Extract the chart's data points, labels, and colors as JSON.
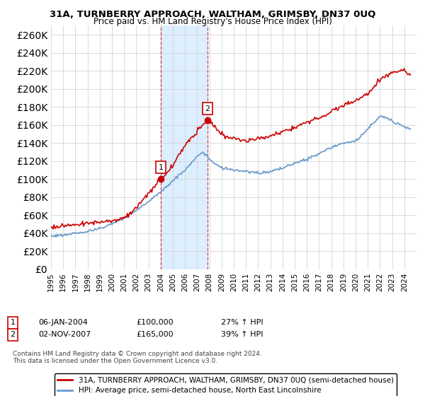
{
  "title": "31A, TURNBERRY APPROACH, WALTHAM, GRIMSBY, DN37 0UQ",
  "subtitle": "Price paid vs. HM Land Registry's House Price Index (HPI)",
  "legend_line1": "31A, TURNBERRY APPROACH, WALTHAM, GRIMSBY, DN37 0UQ (semi-detached house)",
  "legend_line2": "HPI: Average price, semi-detached house, North East Lincolnshire",
  "footnote": "Contains HM Land Registry data © Crown copyright and database right 2024.\nThis data is licensed under the Open Government Licence v3.0.",
  "sale1_date": "06-JAN-2004",
  "sale1_price": "£100,000",
  "sale1_hpi": "27% ↑ HPI",
  "sale2_date": "02-NOV-2007",
  "sale2_price": "£165,000",
  "sale2_hpi": "39% ↑ HPI",
  "sale1_x": 2004.03,
  "sale1_y": 100000,
  "sale2_x": 2007.84,
  "sale2_y": 165000,
  "shaded_x1": 2004.03,
  "shaded_x2": 2007.84,
  "ylim": [
    0,
    270000
  ],
  "xlim_start": 1995.0,
  "xlim_end": 2025.0,
  "price_color": "#cc0000",
  "hpi_color": "#6699cc",
  "shade_color": "#ddeeff",
  "yticks": [
    0,
    20000,
    40000,
    60000,
    80000,
    100000,
    120000,
    140000,
    160000,
    180000,
    200000,
    220000,
    240000,
    260000
  ],
  "xticks": [
    1995,
    1996,
    1997,
    1998,
    1999,
    2000,
    2001,
    2002,
    2003,
    2004,
    2005,
    2006,
    2007,
    2008,
    2009,
    2010,
    2011,
    2012,
    2013,
    2014,
    2015,
    2016,
    2017,
    2018,
    2019,
    2020,
    2021,
    2022,
    2023,
    2024
  ],
  "hpi_kx": [
    1995,
    1996,
    1997,
    1998,
    1999,
    2000,
    2001,
    2002,
    2003,
    2004,
    2005,
    2006,
    2007,
    2007.5,
    2008,
    2009,
    2010,
    2011,
    2012,
    2013,
    2014,
    2015,
    2016,
    2017,
    2018,
    2019,
    2020,
    2021,
    2022,
    2023,
    2024,
    2024.5
  ],
  "hpi_ky": [
    37000,
    38000,
    40000,
    42000,
    45000,
    50000,
    57000,
    65000,
    75000,
    86000,
    98000,
    110000,
    125000,
    130000,
    122000,
    112000,
    110000,
    108000,
    107000,
    108000,
    112000,
    118000,
    122000,
    128000,
    135000,
    140000,
    142000,
    155000,
    170000,
    165000,
    158000,
    155000
  ],
  "price_kx": [
    1995,
    1996,
    1997,
    1998,
    1999,
    2000,
    2001,
    2002,
    2003,
    2004.03,
    2005,
    2006,
    2007.84,
    2008.5,
    2009,
    2010,
    2011,
    2012,
    2013,
    2014,
    2015,
    2016,
    2017,
    2018,
    2019,
    2020,
    2021,
    2022,
    2023,
    2024,
    2024.4
  ],
  "price_ky": [
    47000,
    48000,
    50000,
    51000,
    52000,
    54000,
    57000,
    68000,
    84000,
    100000,
    115000,
    138000,
    165000,
    158000,
    148000,
    145000,
    142000,
    145000,
    148000,
    152000,
    158000,
    163000,
    168000,
    175000,
    182000,
    187000,
    195000,
    210000,
    218000,
    220000,
    215000
  ]
}
